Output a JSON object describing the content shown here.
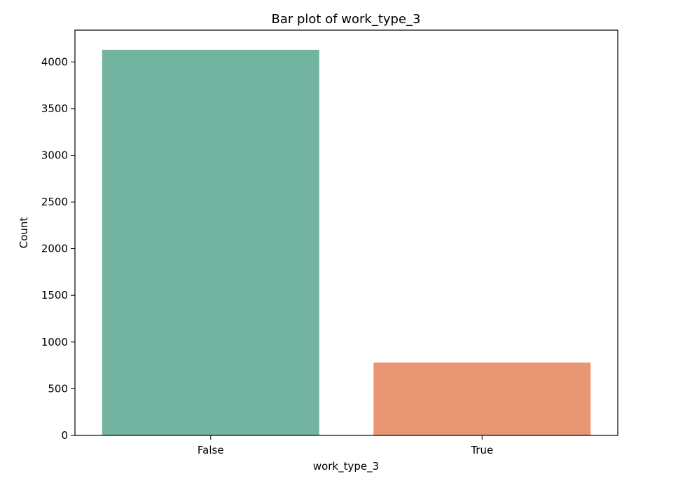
{
  "chart_data": {
    "type": "bar",
    "title": "Bar plot of work_type_3",
    "xlabel": "work_type_3",
    "ylabel": "Count",
    "categories": [
      "False",
      "True"
    ],
    "values": [
      4130,
      780
    ],
    "colors": [
      "#73b4a1",
      "#e99674"
    ],
    "ylim": [
      0,
      4340
    ],
    "yticks": [
      0,
      500,
      1000,
      1500,
      2000,
      2500,
      3000,
      3500,
      4000
    ],
    "grid": false,
    "legend": "none"
  }
}
